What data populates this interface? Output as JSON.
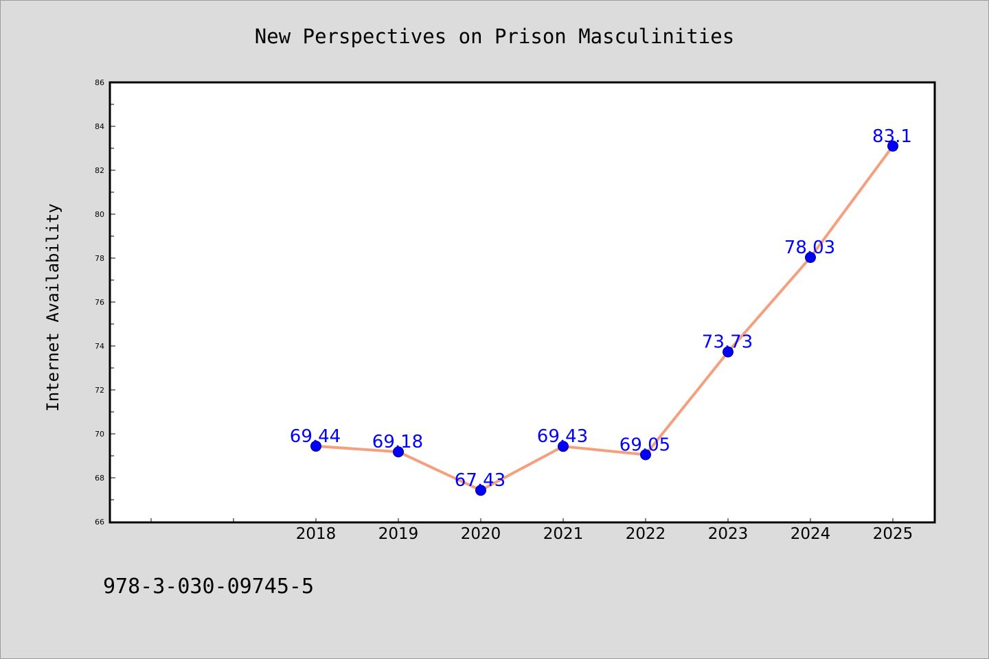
{
  "chart_data": {
    "type": "line",
    "title": "New Perspectives on Prison Masculinities",
    "xlabel": "",
    "ylabel": "Internet Availability",
    "categories": [
      "2018",
      "2019",
      "2020",
      "2021",
      "2022",
      "2023",
      "2024",
      "2025"
    ],
    "series": [
      {
        "values": [
          69.44,
          69.18,
          67.43,
          69.43,
          69.05,
          73.73,
          78.03,
          83.1
        ]
      }
    ],
    "data_labels": [
      "69.44",
      "69.18",
      "67.43",
      "69.43",
      "69.05",
      "73.73",
      "78.03",
      "83.1"
    ],
    "ylim": [
      66,
      86
    ],
    "y_ticks": [
      "66",
      "68",
      "70",
      "72",
      "74",
      "76",
      "78",
      "80",
      "82",
      "84",
      "86"
    ],
    "grid": false,
    "legend": "none",
    "colors": {
      "line": "#f4a07e",
      "marker": "#0000ff",
      "marker_edge": "#00007a",
      "label": "#0000ff",
      "plot_background": "#ffffff",
      "page_background": "#dcdcdc"
    }
  },
  "footer": {
    "isbn": "978-3-030-09745-5"
  }
}
